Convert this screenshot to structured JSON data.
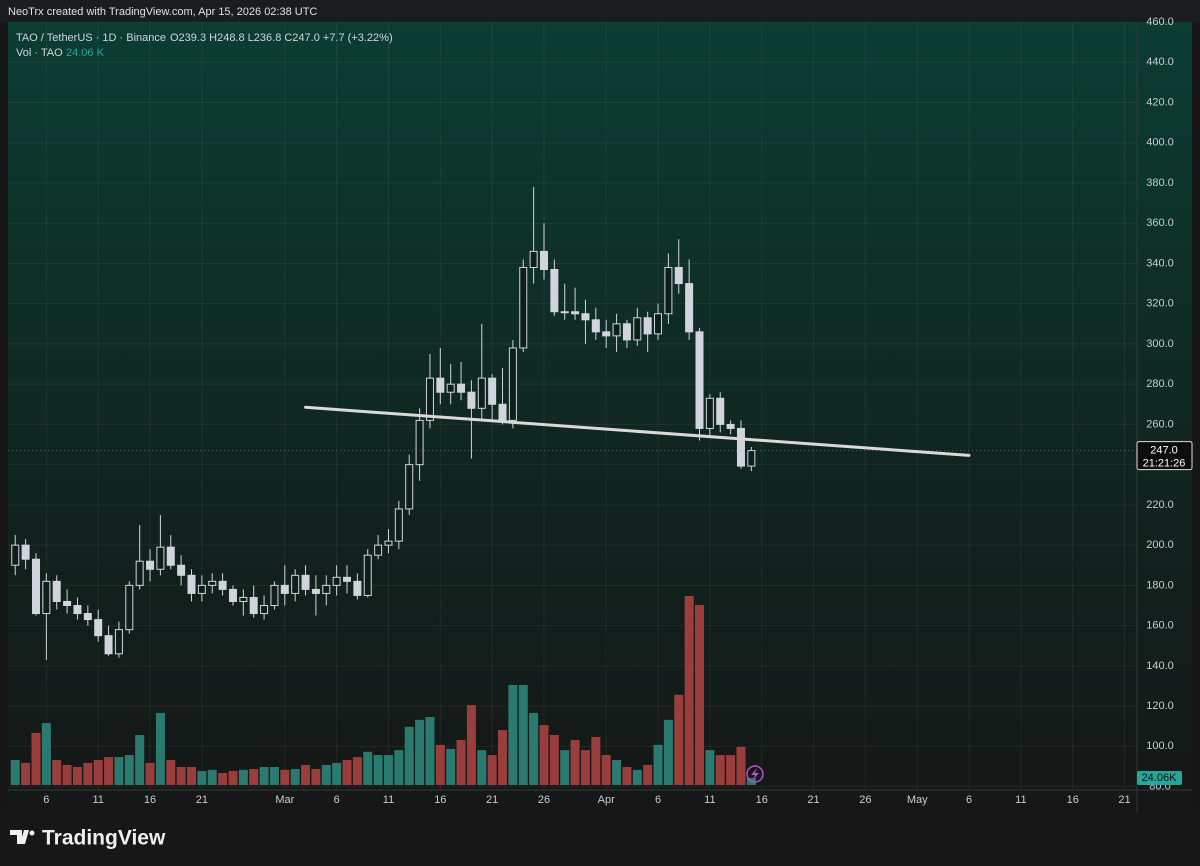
{
  "header": {
    "caption": "NeoTrx created with TradingView.com, Apr 15, 2026 02:38 UTC"
  },
  "chart_data": {
    "type": "candlestick",
    "symbol": "TAO / TetherUS · 1D · Binance",
    "ohlc_text": "O239.3  H248.8  L236.8  C247.0  +7.7 (+3.22%)",
    "volume_legend": "Vol · TAO",
    "volume_legend_value": "24.06 K",
    "last_price_label": "247.0",
    "countdown": "21:21:26",
    "volume_axis_label": "24.06K",
    "brand": "TradingView",
    "candle_color": "#d1d4dc",
    "up_color": "#2b7a70",
    "down_color": "#9a3d3d",
    "trendline_color": "#d9d9d9",
    "grid": true,
    "x": [
      -3,
      -2,
      -1,
      0,
      1,
      2,
      3,
      4,
      5,
      6,
      7,
      8,
      9,
      10,
      11,
      12,
      13,
      14,
      15,
      16,
      17,
      18,
      19,
      20,
      21,
      22,
      23,
      24,
      25,
      26,
      27,
      28,
      29,
      30,
      31,
      32,
      33,
      34,
      35,
      36,
      37,
      38,
      39,
      40,
      41,
      42,
      43,
      44,
      45,
      46,
      47,
      48,
      49,
      50,
      51,
      52,
      53,
      54,
      55,
      56,
      57,
      58,
      59,
      60,
      61,
      62,
      63,
      64,
      65,
      66,
      67,
      68
    ],
    "open": [
      190,
      200,
      193,
      166,
      182,
      172,
      170,
      166,
      163,
      155,
      146,
      158,
      180,
      192,
      188,
      199,
      190,
      185,
      176,
      180,
      182,
      178,
      172,
      174,
      166,
      170,
      180,
      176,
      185,
      178,
      176,
      180,
      184,
      182,
      175,
      195,
      200,
      202,
      218,
      240,
      262,
      283,
      276,
      280,
      276,
      268,
      283,
      270,
      262,
      298,
      338,
      346,
      337,
      316,
      316,
      315,
      312,
      306,
      304,
      310,
      302,
      313,
      305,
      315,
      338,
      330,
      306,
      258,
      273,
      260,
      258,
      239.3
    ],
    "high": [
      205,
      203,
      196,
      186,
      185,
      178,
      174,
      170,
      168,
      160,
      162,
      182,
      210,
      198,
      215,
      205,
      195,
      188,
      185,
      186,
      186,
      180,
      178,
      180,
      175,
      182,
      190,
      188,
      190,
      185,
      185,
      190,
      190,
      186,
      198,
      205,
      208,
      222,
      245,
      268,
      295,
      298,
      290,
      291,
      282,
      310,
      285,
      288,
      302,
      342,
      378,
      360,
      342,
      330,
      328,
      322,
      318,
      312,
      315,
      312,
      318,
      316,
      320,
      345,
      352,
      342,
      308,
      275,
      276,
      262,
      262,
      248.8
    ],
    "low": [
      185,
      188,
      165,
      143,
      168,
      166,
      163,
      160,
      152,
      145,
      144,
      156,
      178,
      182,
      185,
      188,
      180,
      172,
      172,
      176,
      175,
      170,
      165,
      164,
      163,
      168,
      170,
      172,
      175,
      165,
      170,
      175,
      176,
      173,
      174,
      193,
      196,
      198,
      215,
      232,
      258,
      270,
      270,
      272,
      243,
      262,
      262,
      260,
      258,
      296,
      330,
      332,
      314,
      312,
      312,
      300,
      302,
      298,
      296,
      298,
      299,
      296,
      302,
      310,
      325,
      302,
      252,
      254,
      256,
      255,
      238,
      236.8
    ],
    "close": [
      200,
      193,
      166,
      182,
      172,
      170,
      166,
      163,
      155,
      146,
      158,
      180,
      192,
      188,
      199,
      190,
      185,
      176,
      180,
      182,
      178,
      172,
      174,
      166,
      170,
      180,
      176,
      185,
      178,
      176,
      180,
      184,
      182,
      175,
      195,
      200,
      202,
      218,
      240,
      262,
      283,
      276,
      280,
      276,
      268,
      283,
      270,
      262,
      298,
      338,
      346,
      337,
      316,
      316,
      315,
      312,
      306,
      304,
      310,
      302,
      313,
      305,
      315,
      338,
      330,
      306,
      258,
      273,
      260,
      258,
      239.3,
      247
    ],
    "volume": [
      86,
      76,
      179,
      213,
      86,
      69,
      62,
      76,
      86,
      96,
      96,
      103,
      172,
      76,
      248,
      86,
      62,
      62,
      48,
      52,
      41,
      48,
      52,
      55,
      62,
      62,
      52,
      55,
      69,
      55,
      69,
      76,
      86,
      96,
      114,
      103,
      103,
      120,
      200,
      224,
      234,
      138,
      124,
      155,
      275,
      120,
      103,
      189,
      344,
      344,
      248,
      206,
      172,
      120,
      155,
      120,
      165,
      103,
      86,
      62,
      52,
      69,
      138,
      224,
      310,
      650,
      619,
      120,
      103,
      103,
      131,
      24.06
    ],
    "trendline": {
      "x": [
        25,
        89
      ],
      "values": [
        268.5,
        244.6
      ]
    },
    "xlim": [
      -3.7,
      105.2
    ],
    "ylim": [
      78.3,
      460
    ],
    "xticks": [
      {
        "value": 0,
        "label": "6"
      },
      {
        "value": 5,
        "label": "11"
      },
      {
        "value": 10,
        "label": "16"
      },
      {
        "value": 15,
        "label": "21"
      },
      {
        "value": 23,
        "label": "Mar"
      },
      {
        "value": 28,
        "label": "6"
      },
      {
        "value": 33,
        "label": "11"
      },
      {
        "value": 38,
        "label": "16"
      },
      {
        "value": 43,
        "label": "21"
      },
      {
        "value": 48,
        "label": "26"
      },
      {
        "value": 54,
        "label": "Apr"
      },
      {
        "value": 59,
        "label": "6"
      },
      {
        "value": 64,
        "label": "11"
      },
      {
        "value": 69,
        "label": "16"
      },
      {
        "value": 74,
        "label": "21"
      },
      {
        "value": 79,
        "label": "26"
      },
      {
        "value": 84,
        "label": "May"
      },
      {
        "value": 89,
        "label": "6"
      },
      {
        "value": 94,
        "label": "11"
      },
      {
        "value": 99,
        "label": "16"
      },
      {
        "value": 104,
        "label": "21"
      }
    ],
    "yticks": [
      {
        "value": 80,
        "label": "80.0"
      },
      {
        "value": 100,
        "label": "100.0"
      },
      {
        "value": 120,
        "label": "120.0"
      },
      {
        "value": 140,
        "label": "140.0"
      },
      {
        "value": 160,
        "label": "160.0"
      },
      {
        "value": 180,
        "label": "180.0"
      },
      {
        "value": 200,
        "label": "200.0"
      },
      {
        "value": 220,
        "label": "220.0"
      },
      {
        "value": 240,
        "label": "240.0"
      },
      {
        "value": 260,
        "label": "260.0"
      },
      {
        "value": 280,
        "label": "280.0"
      },
      {
        "value": 300,
        "label": "300.0"
      },
      {
        "value": 320,
        "label": "320.0"
      },
      {
        "value": 340,
        "label": "340.0"
      },
      {
        "value": 360,
        "label": "360.0"
      },
      {
        "value": 380,
        "label": "380.0"
      },
      {
        "value": 400,
        "label": "400.0"
      },
      {
        "value": 420,
        "label": "420.0"
      },
      {
        "value": 440,
        "label": "440.0"
      },
      {
        "value": 460,
        "label": "460.0"
      }
    ]
  }
}
